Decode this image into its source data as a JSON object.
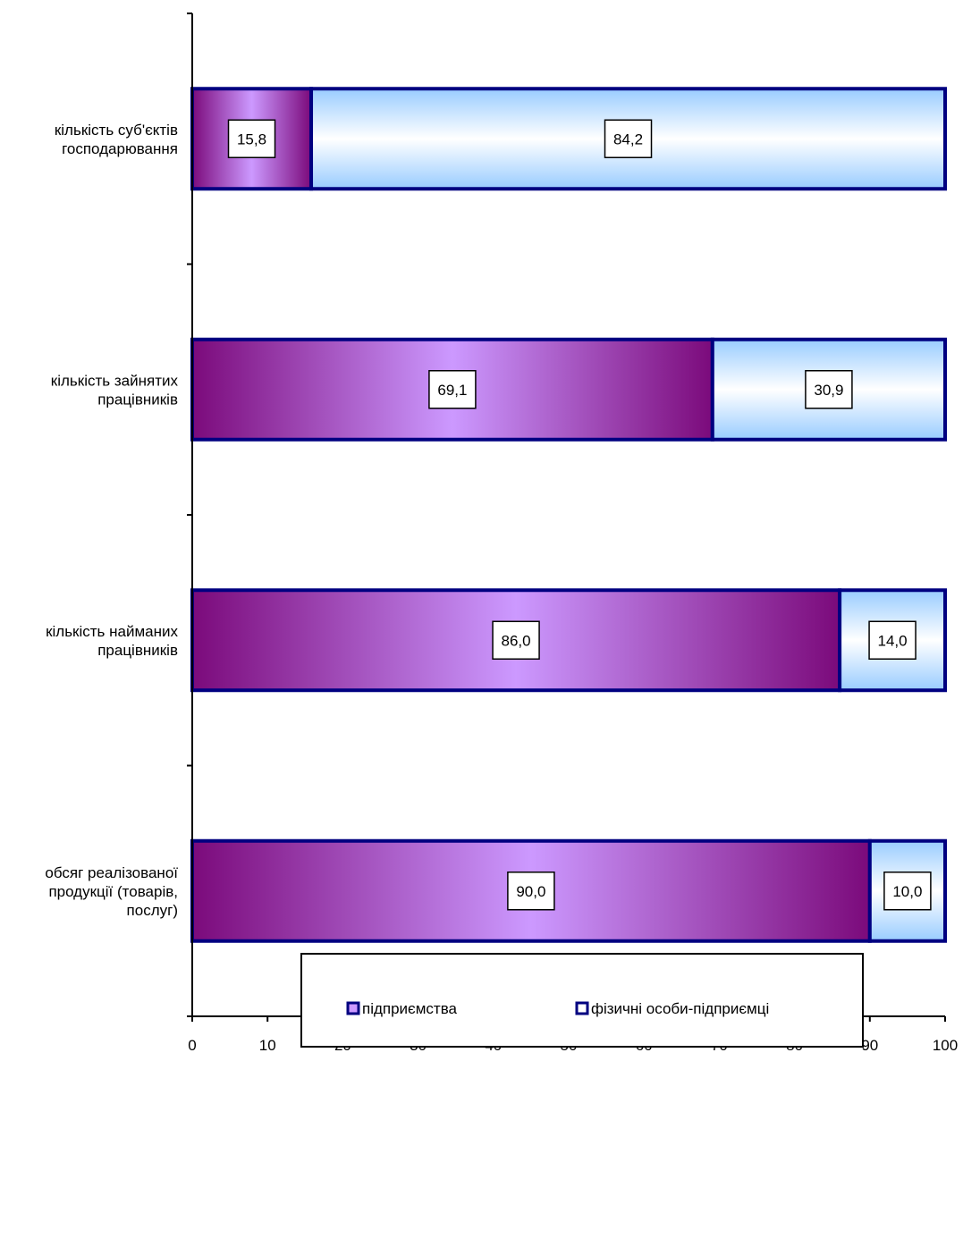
{
  "chart_data": {
    "type": "bar",
    "orientation": "horizontal",
    "stacked": true,
    "categories": [
      [
        "кількість суб'єктів",
        "господарювання"
      ],
      [
        "кількість зайнятих",
        "працівників"
      ],
      [
        "кількість найманих",
        "працівників"
      ],
      [
        "обсяг реалізованої",
        "продукції (товарів,",
        "послуг)"
      ]
    ],
    "series": [
      {
        "name": "підприємства",
        "values": [
          15.8,
          69.1,
          86.0,
          90.0
        ],
        "labels": [
          "15,8",
          "69,1",
          "86,0",
          "90,0"
        ]
      },
      {
        "name": "фізичні особи-підприємці",
        "values": [
          84.2,
          30.9,
          14.0,
          10.0
        ],
        "labels": [
          "84,2",
          "30,9",
          "14,0",
          "10,0"
        ]
      }
    ],
    "xlim": [
      0,
      100
    ],
    "x_ticks": [
      "0",
      "10",
      "20",
      "30",
      "40",
      "50",
      "60",
      "70",
      "80",
      "90",
      "100"
    ],
    "grid": false,
    "legend_position": "bottom",
    "colors": {
      "bar_border": "#000080",
      "series1_dark": "#7b0a7b",
      "series1_light": "#cc99ff",
      "series2_dark": "#99ccff",
      "series2_light": "#ffffff",
      "axis": "#000000"
    }
  }
}
